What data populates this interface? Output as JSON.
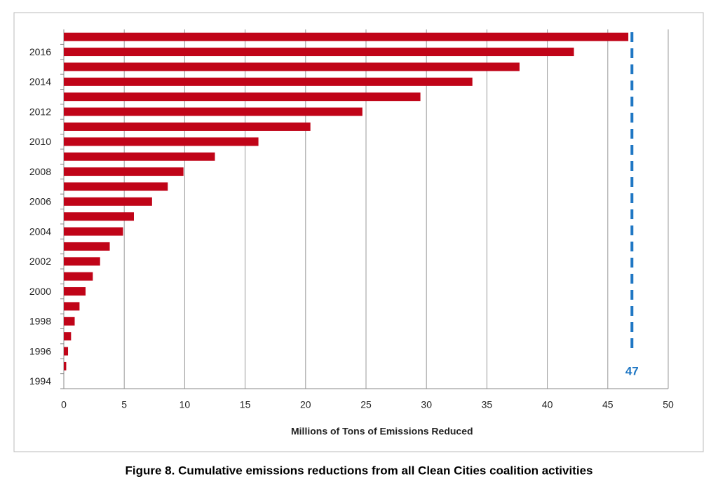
{
  "chart_data": {
    "type": "barh",
    "caption": "Figure 8. Cumulative emissions reductions from all Clean Cities coalition activities",
    "x_label": "Millions  of Tons of Emissions  Reduced",
    "categories": [
      "1994",
      null,
      "1996",
      null,
      "1998",
      null,
      "2000",
      null,
      "2002",
      null,
      "2004",
      null,
      "2006",
      null,
      "2008",
      null,
      "2010",
      null,
      "2012",
      null,
      "2014",
      null,
      "2016",
      null
    ],
    "values": [
      0,
      0.2,
      0.35,
      0.6,
      0.9,
      1.3,
      1.8,
      2.4,
      3.0,
      3.8,
      4.9,
      5.8,
      7.3,
      8.6,
      9.9,
      12.5,
      16.1,
      20.4,
      24.7,
      29.5,
      33.8,
      37.7,
      42.2,
      46.7
    ],
    "color": "#c00418",
    "xlim": [
      0,
      50
    ],
    "xticks": [
      0,
      5,
      10,
      15,
      20,
      25,
      30,
      35,
      40,
      45,
      50
    ],
    "grid": true,
    "reference_line": {
      "value": 47,
      "color": "#1f77c4"
    }
  }
}
